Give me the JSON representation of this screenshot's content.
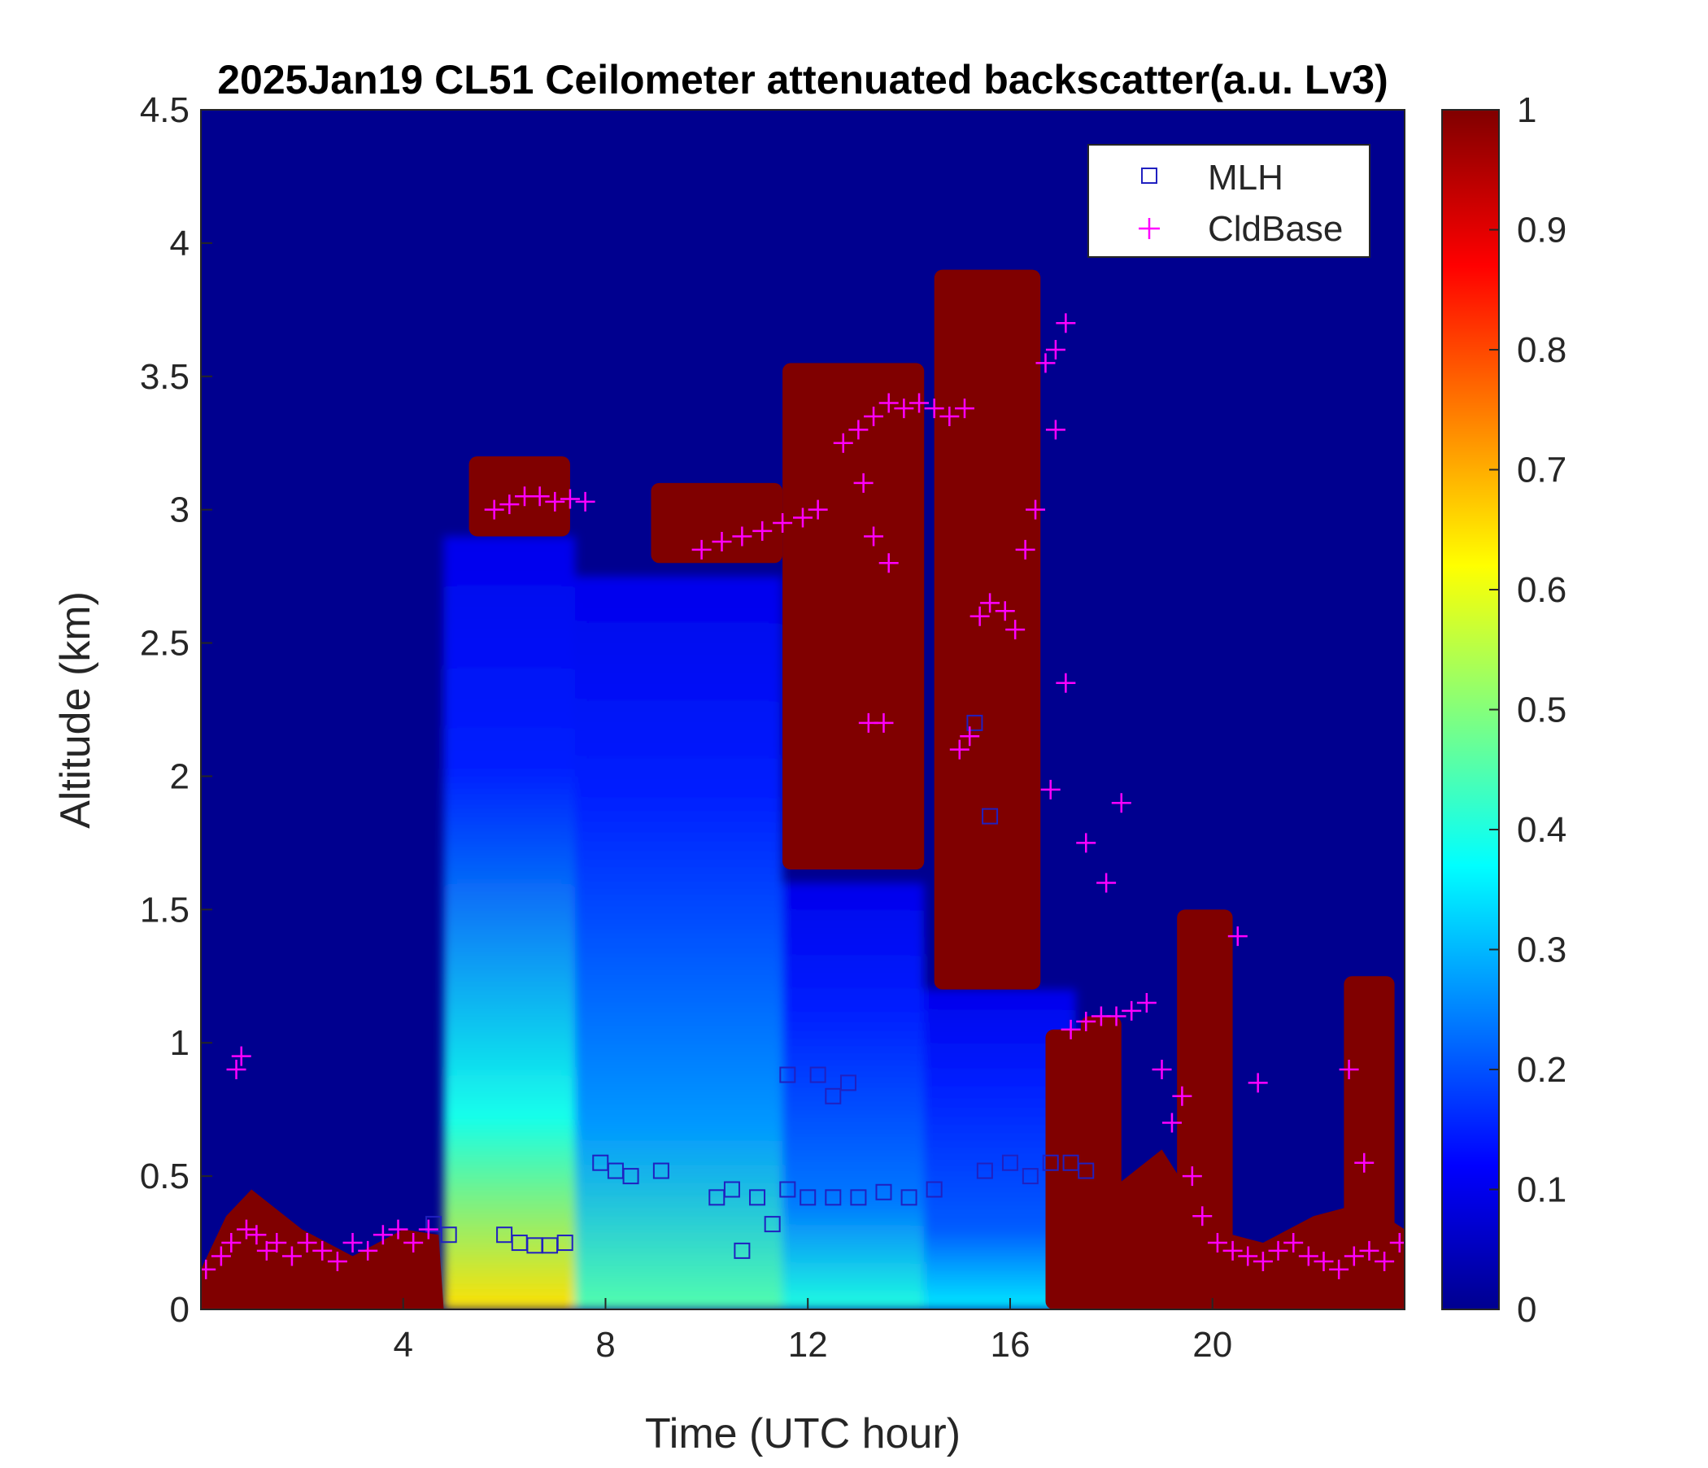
{
  "chart_data": {
    "type": "heatmap",
    "title": "2025Jan19 CL51 Ceilometer attenuated backscatter(a.u. Lv3)",
    "xlabel": "Time (UTC hour)",
    "ylabel": "Altitude (km)",
    "xlim": [
      0,
      23.8
    ],
    "ylim": [
      0,
      4.5
    ],
    "x_ticks": [
      4,
      8,
      12,
      16,
      20
    ],
    "x_tick_labels": [
      "4",
      "8",
      "12",
      "16",
      "20"
    ],
    "y_ticks": [
      0,
      0.5,
      1,
      1.5,
      2,
      2.5,
      3,
      3.5,
      4,
      4.5
    ],
    "y_tick_labels": [
      "0",
      "0.5",
      "1",
      "1.5",
      "2",
      "2.5",
      "3",
      "3.5",
      "4",
      "4.5"
    ],
    "colorbar": {
      "range": [
        0,
        1
      ],
      "ticks": [
        0,
        0.1,
        0.2,
        0.3,
        0.4,
        0.5,
        0.6,
        0.7,
        0.8,
        0.9,
        1
      ],
      "tick_labels": [
        "0",
        "0.1",
        "0.2",
        "0.3",
        "0.4",
        "0.5",
        "0.6",
        "0.7",
        "0.8",
        "0.9",
        "1"
      ],
      "colormap": "jet"
    },
    "legend": {
      "placement": "top-right",
      "entries": [
        {
          "label": "MLH",
          "marker": "square",
          "color": "#2020c0"
        },
        {
          "label": "CldBase",
          "marker": "plus",
          "color": "#ff00ff"
        }
      ]
    },
    "cloud_layers": [
      {
        "x0": 5.3,
        "x1": 7.3,
        "base_km": 2.9,
        "top_km": 3.2
      },
      {
        "x0": 8.9,
        "x1": 11.5,
        "base_km": 2.8,
        "top_km": 3.1
      },
      {
        "x0": 11.5,
        "x1": 14.3,
        "base_km": 1.65,
        "top_km": 3.55
      },
      {
        "x0": 14.5,
        "x1": 16.6,
        "base_km": 1.2,
        "top_km": 3.9
      },
      {
        "x0": 16.7,
        "x1": 17.6,
        "base_km": 0,
        "top_km": 1.05
      },
      {
        "x0": 17.4,
        "x1": 18.2,
        "base_km": 0,
        "top_km": 1.1
      },
      {
        "x0": 19.3,
        "x1": 20.4,
        "base_km": 0,
        "top_km": 1.5
      },
      {
        "x0": 22.6,
        "x1": 23.6,
        "base_km": 0,
        "top_km": 1.25
      }
    ],
    "surface_layer": [
      {
        "x": 0,
        "top_km": 0.15
      },
      {
        "x": 0.5,
        "top_km": 0.35
      },
      {
        "x": 1,
        "top_km": 0.45
      },
      {
        "x": 2,
        "top_km": 0.3
      },
      {
        "x": 3,
        "top_km": 0.2
      },
      {
        "x": 4,
        "top_km": 0.3
      },
      {
        "x": 4.7,
        "top_km": 0.28
      },
      {
        "x": 4.8,
        "top_km": 0
      },
      {
        "x": 17.4,
        "top_km": 0
      },
      {
        "x": 18,
        "top_km": 0.45
      },
      {
        "x": 19,
        "top_km": 0.6
      },
      {
        "x": 20,
        "top_km": 0.3
      },
      {
        "x": 21,
        "top_km": 0.25
      },
      {
        "x": 22,
        "top_km": 0.35
      },
      {
        "x": 23,
        "top_km": 0.4
      },
      {
        "x": 23.8,
        "top_km": 0.3
      }
    ],
    "aerosol_layer": [
      {
        "x0": 4.8,
        "x1": 7.4,
        "top_km": 2.9,
        "bottom_value": 0.65
      },
      {
        "x0": 7.4,
        "x1": 11.5,
        "top_km": 2.75,
        "bottom_value": 0.45
      },
      {
        "x0": 11.5,
        "x1": 14.3,
        "top_km": 1.6,
        "bottom_value": 0.4
      },
      {
        "x0": 14.3,
        "x1": 17.3,
        "top_km": 1.2,
        "bottom_value": 0.35
      }
    ],
    "series": [
      {
        "name": "CldBase",
        "x": [
          0.1,
          0.4,
          0.6,
          0.9,
          1.1,
          1.3,
          1.5,
          1.8,
          2.1,
          2.4,
          2.7,
          3.0,
          3.3,
          3.6,
          3.9,
          4.2,
          4.5,
          0.7,
          0.8,
          5.8,
          6.1,
          6.4,
          6.7,
          7.0,
          7.3,
          7.6,
          9.9,
          10.3,
          10.7,
          11.1,
          11.5,
          11.9,
          12.2,
          12.7,
          13.0,
          13.3,
          13.6,
          13.9,
          14.2,
          14.5,
          14.8,
          15.1,
          13.1,
          13.3,
          13.6,
          13.2,
          13.5,
          15.0,
          15.2,
          15.4,
          15.6,
          15.9,
          16.1,
          16.3,
          16.5,
          16.7,
          16.9,
          17.1,
          16.9,
          17.1,
          16.8,
          17.2,
          17.5,
          17.8,
          18.1,
          18.4,
          18.7,
          17.5,
          17.9,
          18.2,
          19.0,
          19.2,
          19.4,
          19.6,
          19.8,
          20.1,
          20.4,
          20.7,
          21.0,
          21.3,
          21.6,
          21.9,
          22.2,
          22.5,
          22.8,
          23.1,
          23.4,
          23.7,
          22.7,
          23.0,
          20.5,
          20.9
        ],
        "y": [
          0.15,
          0.2,
          0.25,
          0.3,
          0.28,
          0.22,
          0.25,
          0.2,
          0.25,
          0.22,
          0.18,
          0.25,
          0.22,
          0.28,
          0.3,
          0.25,
          0.3,
          0.9,
          0.95,
          3.0,
          3.02,
          3.05,
          3.05,
          3.03,
          3.04,
          3.03,
          2.85,
          2.88,
          2.9,
          2.92,
          2.95,
          2.97,
          3.0,
          3.25,
          3.3,
          3.35,
          3.4,
          3.38,
          3.4,
          3.38,
          3.35,
          3.38,
          3.1,
          2.9,
          2.8,
          2.2,
          2.2,
          2.1,
          2.15,
          2.6,
          2.65,
          2.62,
          2.55,
          2.85,
          3.0,
          3.55,
          3.6,
          3.7,
          3.3,
          2.35,
          1.95,
          1.05,
          1.08,
          1.1,
          1.1,
          1.12,
          1.15,
          1.75,
          1.6,
          1.9,
          0.9,
          0.7,
          0.8,
          0.5,
          0.35,
          0.25,
          0.22,
          0.2,
          0.18,
          0.22,
          0.25,
          0.2,
          0.18,
          0.15,
          0.2,
          0.22,
          0.18,
          0.25,
          0.9,
          0.55,
          1.4,
          0.85
        ]
      },
      {
        "name": "MLH",
        "x": [
          4.6,
          4.9,
          6.0,
          6.3,
          6.6,
          6.9,
          7.2,
          7.9,
          8.2,
          8.5,
          9.1,
          10.2,
          10.5,
          10.7,
          11.0,
          11.3,
          11.6,
          12.0,
          12.5,
          13.0,
          13.5,
          14.0,
          14.5,
          11.6,
          12.2,
          12.5,
          12.8,
          15.5,
          16.0,
          16.4,
          16.8,
          17.2,
          17.5,
          15.3,
          15.6
        ],
        "y": [
          0.32,
          0.28,
          0.28,
          0.25,
          0.24,
          0.24,
          0.25,
          0.55,
          0.52,
          0.5,
          0.52,
          0.42,
          0.45,
          0.22,
          0.42,
          0.32,
          0.45,
          0.42,
          0.42,
          0.42,
          0.44,
          0.42,
          0.45,
          0.88,
          0.88,
          0.8,
          0.85,
          0.52,
          0.55,
          0.5,
          0.55,
          0.55,
          0.52,
          2.2,
          1.85
        ]
      }
    ]
  }
}
